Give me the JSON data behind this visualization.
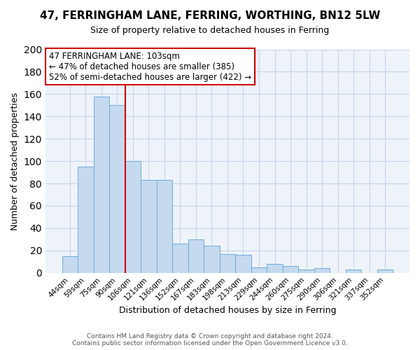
{
  "title": "47, FERRINGHAM LANE, FERRING, WORTHING, BN12 5LW",
  "subtitle": "Size of property relative to detached houses in Ferring",
  "xlabel": "Distribution of detached houses by size in Ferring",
  "ylabel": "Number of detached properties",
  "categories": [
    "44sqm",
    "59sqm",
    "75sqm",
    "90sqm",
    "106sqm",
    "121sqm",
    "136sqm",
    "152sqm",
    "167sqm",
    "183sqm",
    "198sqm",
    "213sqm",
    "229sqm",
    "244sqm",
    "260sqm",
    "275sqm",
    "290sqm",
    "306sqm",
    "321sqm",
    "337sqm",
    "352sqm"
  ],
  "values": [
    15,
    95,
    158,
    150,
    100,
    83,
    83,
    26,
    30,
    24,
    17,
    16,
    5,
    8,
    6,
    3,
    4,
    0,
    3,
    0,
    3
  ],
  "bar_color": "#c5d9ef",
  "bar_edge_color": "#6aaed6",
  "vline_x_index": 4,
  "vline_color": "#cc0000",
  "annotation_text": "47 FERRINGHAM LANE: 103sqm\n← 47% of detached houses are smaller (385)\n52% of semi-detached houses are larger (422) →",
  "annotation_box_color": "#ffffff",
  "annotation_box_edge_color": "#cc0000",
  "ylim": [
    0,
    200
  ],
  "yticks": [
    0,
    20,
    40,
    60,
    80,
    100,
    120,
    140,
    160,
    180,
    200
  ],
  "footer_line1": "Contains HM Land Registry data © Crown copyright and database right 2024.",
  "footer_line2": "Contains public sector information licensed under the Open Government Licence v3.0.",
  "background_color": "#ffffff",
  "plot_bg_color": "#eef3fa",
  "grid_color": "#c8d4e8"
}
